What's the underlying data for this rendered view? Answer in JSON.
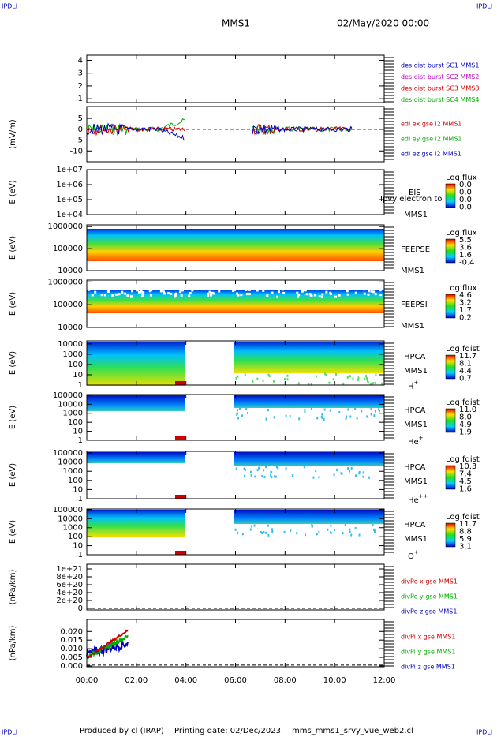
{
  "header": {
    "corner_left": "IPDLI",
    "corner_right": "IPDLI",
    "mission": "MMS1",
    "date": "02/May/2020 00:00"
  },
  "panels": [
    {
      "type": "line",
      "ylim": [
        0.7,
        4.4
      ],
      "yticks": [
        1,
        2,
        3,
        4
      ],
      "legend": [
        {
          "text": "des dist burst SC1 MMS1",
          "color": "#0000c0"
        },
        {
          "text": "des dist burst SC2 MMS2",
          "color": "#c000c0"
        },
        {
          "text": "des dist burst SC3 MMS3",
          "color": "#d00000"
        },
        {
          "text": "des dist burst SC4 MMS4",
          "color": "#00b000"
        }
      ]
    },
    {
      "type": "line",
      "ylabel": "(mV/m)",
      "ylim": [
        -15,
        10.5
      ],
      "yticks": [
        5,
        0,
        -5,
        -10
      ],
      "legend": [
        {
          "text": "edi ex gse l2 MMS1",
          "color": "#d00000"
        },
        {
          "text": "edi ey gse l2 MMS1",
          "color": "#00b000"
        },
        {
          "text": "edi ez gse l2 MMS1",
          "color": "#0000c0"
        }
      ]
    },
    {
      "type": "spectrogram",
      "ylabel": "E (eV)",
      "log": true,
      "ylim": [
        10000,
        10000000
      ],
      "yticks": [
        {
          "value": 10000000,
          "label": "1e+07"
        },
        {
          "value": 1000000,
          "label": "1e+06"
        },
        {
          "value": 100000,
          "label": "1e+05"
        },
        {
          "value": 10000,
          "label": "1e+04"
        }
      ],
      "instrument": "EIS",
      "spacecraft": "MMS1",
      "overlay": "Ipvy electron to",
      "colorbar": {
        "title": "Log flux",
        "labels": [
          "0.0",
          "0.0",
          "0.0",
          "0.0"
        ]
      }
    },
    {
      "type": "spectrogram",
      "ylabel": "E (eV)",
      "log": true,
      "ylim": [
        10000,
        1200000
      ],
      "yticks": [
        1000000,
        100000,
        10000
      ],
      "instrument": "FEEPSE",
      "spacecraft": "MMS1",
      "colorbar": {
        "title": "Log flux",
        "labels": [
          "5.5",
          "3.6",
          "1.6",
          "-0.4"
        ]
      }
    },
    {
      "type": "spectrogram",
      "ylabel": "E (eV)",
      "log": true,
      "ylim": [
        10000,
        1200000
      ],
      "yticks": [
        1000000,
        100000,
        10000
      ],
      "instrument": "FEEPSI",
      "spacecraft": "MMS1",
      "colorbar": {
        "title": "Log flux",
        "labels": [
          "4.6",
          "3.2",
          "1.7",
          "0.2"
        ]
      }
    },
    {
      "type": "spectrogram",
      "ylabel": "E (eV)",
      "log": true,
      "ylim": [
        1,
        20000
      ],
      "yticks": [
        10000,
        1000,
        100,
        10,
        1
      ],
      "instrument": "HPCA",
      "spacecraft": "MMS1",
      "species": "H",
      "charge": "+",
      "colorbar": {
        "title": "Log fdist",
        "labels": [
          "11.7",
          "8.1",
          "4.4",
          "0.7"
        ]
      }
    },
    {
      "type": "spectrogram",
      "ylabel": "E (eV)",
      "log": true,
      "ylim": [
        1,
        120000
      ],
      "yticks": [
        100000,
        10000,
        1000,
        100,
        10,
        1
      ],
      "instrument": "HPCA",
      "spacecraft": "MMS1",
      "species": "He",
      "charge": "+",
      "colorbar": {
        "title": "Log fdist",
        "labels": [
          "11.0",
          "8.0",
          "4.9",
          "1.9"
        ]
      }
    },
    {
      "type": "spectrogram",
      "ylabel": "E (eV)",
      "log": true,
      "ylim": [
        1,
        150000
      ],
      "yticks": [
        100000,
        10000,
        1000,
        100,
        10,
        1
      ],
      "instrument": "HPCA",
      "spacecraft": "MMS1",
      "species": "He",
      "charge": "++",
      "colorbar": {
        "title": "Log fdist",
        "labels": [
          "10.3",
          "7.4",
          "4.5",
          "1.6"
        ]
      }
    },
    {
      "type": "spectrogram",
      "ylabel": "E (eV)",
      "log": true,
      "ylim": [
        1,
        120000
      ],
      "yticks": [
        100000,
        10000,
        1000,
        100,
        10,
        1
      ],
      "instrument": "HPCA",
      "spacecraft": "MMS1",
      "species": "O",
      "charge": "+",
      "colorbar": {
        "title": "Log fdist",
        "labels": [
          "11.7",
          "8.8",
          "5.9",
          "3.1"
        ]
      }
    },
    {
      "type": "line",
      "ylabel": "(nPa/km)",
      "ylim": [
        -4e+19,
        1.12e+21
      ],
      "yticks": [
        {
          "value": 1e+21,
          "label": "1e+21"
        },
        {
          "value": 8e+20,
          "label": "8e+20"
        },
        {
          "value": 6e+20,
          "label": "6e+20"
        },
        {
          "value": 4e+20,
          "label": "4e+20"
        },
        {
          "value": 2e+20,
          "label": "2e+20"
        },
        0
      ],
      "legend": [
        {
          "text": "divPe x gse MMS1",
          "color": "#d00000"
        },
        {
          "text": "divPe y gse MMS1",
          "color": "#00b000"
        },
        {
          "text": "divPe z gse MMS1",
          "color": "#0000c0"
        }
      ]
    },
    {
      "type": "line",
      "ylabel": "(nPa/km)",
      "ylim": [
        -0.0005,
        0.027
      ],
      "yticks": [
        {
          "value": 0.02,
          "label": "0.020"
        },
        {
          "value": 0.015,
          "label": "0.015"
        },
        {
          "value": 0.01,
          "label": "0.010"
        },
        {
          "value": 0.005,
          "label": "0.005"
        },
        {
          "value": 0,
          "label": "0.000"
        }
      ],
      "legend": [
        {
          "text": "divPi x gse MMS1",
          "color": "#d00000"
        },
        {
          "text": "divPi y gse MMS1",
          "color": "#00b000"
        },
        {
          "text": "divPi z gse MMS1",
          "color": "#0000c0"
        }
      ]
    }
  ],
  "xticks": [
    "00:00",
    "02:00",
    "04:00",
    "06:00",
    "08:00",
    "10:00",
    "12:00"
  ],
  "footer": {
    "producer": "Produced by cl (IRAP)",
    "printed": "Printing date: 02/Dec/2023",
    "script": "mms_mms1_srvy_vue_web2.cl"
  }
}
